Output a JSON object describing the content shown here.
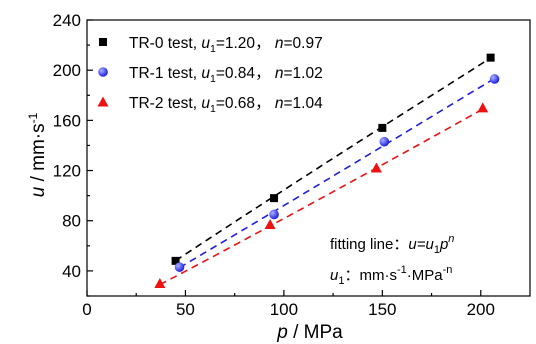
{
  "chart_data": {
    "type": "scatter",
    "xlabel": {
      "var": "p",
      "unit": " / MPa"
    },
    "ylabel": {
      "var": "u",
      "unit": " / mm·s",
      "sup": "-1"
    },
    "xlim": [
      0,
      225
    ],
    "ylim": [
      20,
      240
    ],
    "xticks": [
      0,
      50,
      100,
      150,
      200
    ],
    "yticks": [
      40,
      80,
      120,
      160,
      200,
      240
    ],
    "grid": false,
    "legend_position": "top-left",
    "series": [
      {
        "name": "TR-0 test",
        "u1": "1.20",
        "n": "0.97",
        "marker": "square",
        "color": "#000000",
        "points": [
          [
            45,
            48
          ],
          [
            95,
            98
          ],
          [
            150,
            154
          ],
          [
            205,
            210
          ]
        ],
        "fit": {
          "u1": 1.2,
          "n": 0.97,
          "x_range": [
            45,
            205
          ]
        }
      },
      {
        "name": "TR-1 test",
        "u1": "0.84",
        "n": "1.02",
        "marker": "circle",
        "color": "#1f1fe0",
        "points": [
          [
            47,
            43
          ],
          [
            95,
            85
          ],
          [
            151,
            143
          ],
          [
            207,
            193
          ]
        ],
        "fit": {
          "u1": 0.84,
          "n": 1.02,
          "x_range": [
            47,
            207
          ]
        }
      },
      {
        "name": "TR-2 test",
        "u1": "0.68",
        "n": "1.04",
        "marker": "triangle",
        "color": "#ee1111",
        "points": [
          [
            37,
            30
          ],
          [
            93,
            77
          ],
          [
            147,
            122
          ],
          [
            201,
            170
          ]
        ],
        "fit": {
          "u1": 0.68,
          "n": 1.04,
          "x_range": [
            37,
            201
          ]
        }
      }
    ],
    "legend_labels": {
      "u1_prefix": ", u",
      "u1_sub": "1",
      "n_prefix": "，",
      "n_var": "n",
      "eq": "="
    },
    "annotations": {
      "fitting_prefix": "fitting line：",
      "fitting_u": "u",
      "fitting_eq": "=u",
      "fitting_sub": "1",
      "fitting_p": "p",
      "fitting_sup": "n",
      "unit_var": "u",
      "unit_sub": "1",
      "unit_text1": "：mm·s",
      "unit_sup1": "-1",
      "unit_text2": "·MPa",
      "unit_sup2": "-n"
    }
  }
}
